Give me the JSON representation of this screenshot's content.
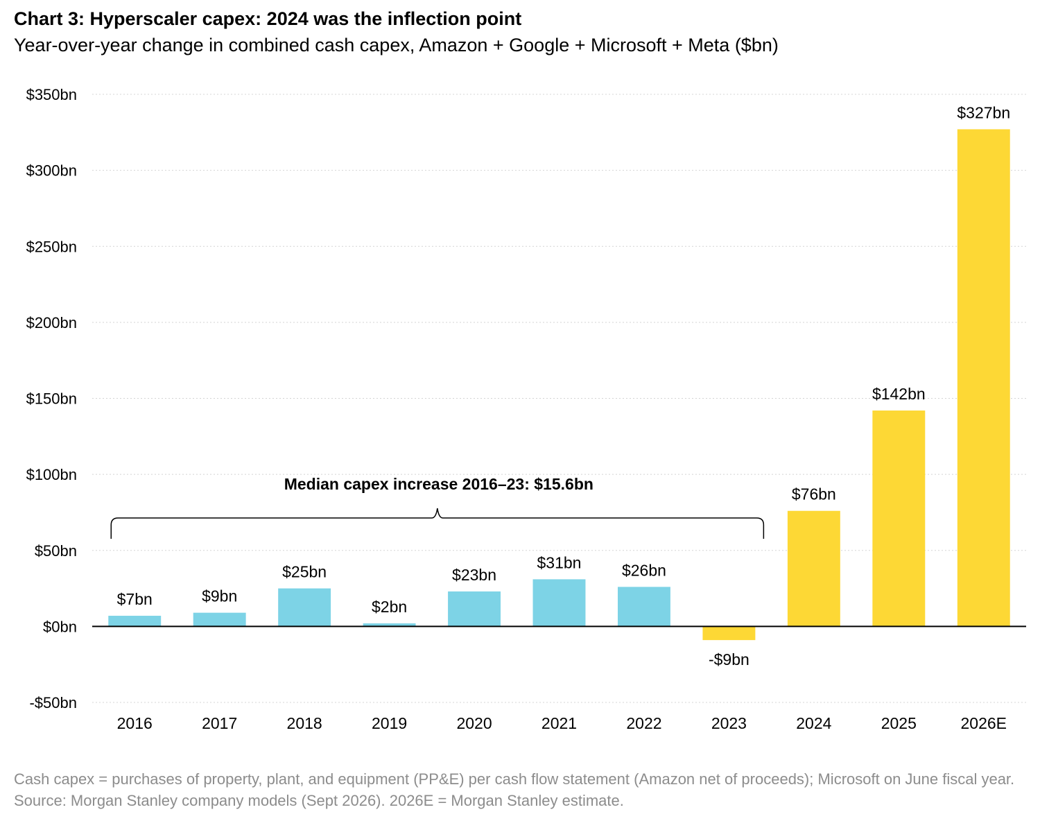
{
  "title": "Chart 3: Hyperscaler capex: 2024 was the inflection point",
  "subtitle": "Year-over-year change in combined cash capex, Amazon + Google + Microsoft + Meta ($bn)",
  "footnote": "Cash capex = purchases of property, plant, and equipment (PP&E) per cash flow statement (Amazon net of proceeds); Microsoft on June fiscal year. Source: Morgan Stanley company models (Sept 2026). 2026E = Morgan Stanley estimate.",
  "chart_data": {
    "type": "bar",
    "categories": [
      "2016",
      "2017",
      "2018",
      "2019",
      "2020",
      "2021",
      "2022",
      "2023",
      "2024",
      "2025",
      "2026E"
    ],
    "values": [
      7,
      9,
      25,
      2,
      23,
      31,
      26,
      -9,
      76,
      142,
      327
    ],
    "value_labels": [
      "$7bn",
      "$9bn",
      "$25bn",
      "$2bn",
      "$23bn",
      "$31bn",
      "$26bn",
      "-$9bn",
      "$76bn",
      "$142bn",
      "$327bn"
    ],
    "bar_colors": [
      "#7dd3e6",
      "#7dd3e6",
      "#7dd3e6",
      "#7dd3e6",
      "#7dd3e6",
      "#7dd3e6",
      "#7dd3e6",
      "#fdd835",
      "#fdd835",
      "#fdd835",
      "#fdd835"
    ],
    "yticks": [
      -50,
      0,
      50,
      100,
      150,
      200,
      250,
      300,
      350
    ],
    "ytick_labels": [
      "-$50bn",
      "$0bn",
      "$50bn",
      "$100bn",
      "$150bn",
      "$200bn",
      "$250bn",
      "$300bn",
      "$350bn"
    ],
    "ylim": [
      -50,
      350
    ],
    "grid": true,
    "annotation": {
      "text": "Median capex increase 2016–23: $15.6bn",
      "from_category": "2016",
      "to_category": "2023"
    }
  }
}
